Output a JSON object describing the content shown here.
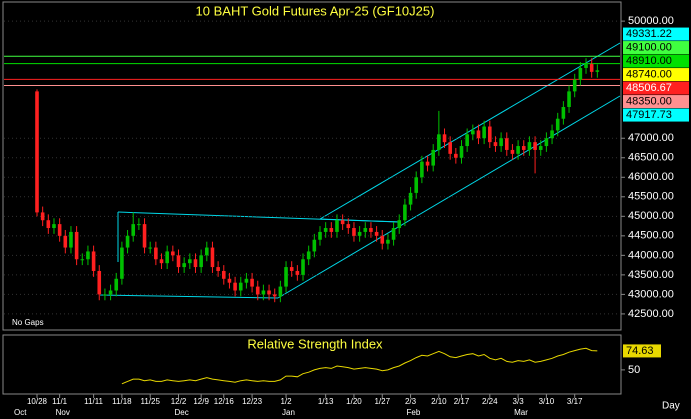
{
  "chart_data": {
    "type": "candlestick",
    "title": "10 BAHT Gold Futures Apr-25 (GF10J25)",
    "note": "No Gaps",
    "x_axis_label": "Day",
    "months": [
      "Oct",
      "Nov",
      "Dec",
      "Jan",
      "Feb",
      "Mar"
    ],
    "categories": [
      "10/28",
      null,
      null,
      null,
      "11/1",
      null,
      null,
      null,
      null,
      null,
      "11/11",
      null,
      null,
      null,
      null,
      "11/18",
      null,
      null,
      null,
      null,
      "11/25",
      null,
      null,
      null,
      null,
      "12/2",
      null,
      null,
      null,
      "12/9",
      null,
      null,
      null,
      "12/16",
      null,
      null,
      null,
      null,
      "12/23",
      null,
      null,
      null,
      null,
      null,
      "1/2",
      null,
      null,
      null,
      null,
      null,
      null,
      "1/13",
      null,
      null,
      null,
      null,
      "1/20",
      null,
      null,
      null,
      null,
      "1/27",
      null,
      null,
      null,
      null,
      "2/3",
      null,
      null,
      null,
      null,
      "2/10",
      null,
      null,
      null,
      "2/17",
      null,
      null,
      null,
      null,
      "2/24",
      null,
      null,
      null,
      null,
      "3/3",
      null,
      null,
      null,
      null,
      "3/10",
      null,
      null,
      null,
      null,
      "3/17",
      null,
      null,
      null,
      null
    ],
    "open": [
      48200,
      45100,
      44900,
      44700,
      44800,
      44500,
      44200,
      44600,
      43900,
      43900,
      44100,
      43600,
      43000,
      43000,
      43100,
      43400,
      44200,
      44500,
      44800,
      44800,
      44200,
      44200,
      43900,
      43800,
      44100,
      44000,
      43700,
      43800,
      43900,
      43700,
      44000,
      44200,
      43700,
      43600,
      43400,
      43300,
      43100,
      43300,
      43400,
      43200,
      43000,
      43100,
      43000,
      42950,
      43200,
      43700,
      43600,
      43500,
      43900,
      44100,
      44400,
      44600,
      44700,
      44600,
      44900,
      44800,
      44700,
      44500,
      44600,
      44700,
      44600,
      44500,
      44300,
      44400,
      44700,
      44900,
      45300,
      45600,
      46000,
      46400,
      46300,
      46700,
      47100,
      46900,
      46600,
      46500,
      46800,
      47100,
      47200,
      47000,
      47300,
      46900,
      46800,
      47000,
      46700,
      46600,
      46800,
      46700,
      46900,
      46700,
      46800,
      47000,
      47200,
      47500,
      47800,
      48200,
      48500,
      48800,
      48900,
      48700
    ],
    "high": [
      48250,
      45250,
      45050,
      44950,
      44950,
      44650,
      44750,
      44750,
      44050,
      44250,
      44250,
      43750,
      43150,
      43250,
      43550,
      44350,
      44650,
      45100,
      44950,
      44950,
      44350,
      44350,
      44050,
      44250,
      44250,
      44150,
      43950,
      44050,
      44050,
      44150,
      44350,
      44350,
      43850,
      43750,
      43550,
      43450,
      43450,
      43550,
      43550,
      43350,
      43250,
      43250,
      43150,
      43350,
      43850,
      43850,
      43750,
      44050,
      44250,
      44550,
      44750,
      44850,
      44850,
      45050,
      45050,
      44950,
      44850,
      44750,
      44850,
      44850,
      44750,
      44650,
      44550,
      44850,
      45050,
      45450,
      45750,
      46150,
      46550,
      46550,
      46850,
      47700,
      47250,
      47050,
      46750,
      46950,
      47250,
      47350,
      47350,
      47450,
      47450,
      47050,
      47150,
      47150,
      46850,
      46950,
      46950,
      47050,
      47050,
      46950,
      47150,
      47350,
      47650,
      47950,
      48350,
      48650,
      48950,
      49050,
      49050,
      48890
    ],
    "low": [
      45000,
      44750,
      44550,
      44550,
      44350,
      44050,
      44050,
      43750,
      43750,
      43750,
      43450,
      42850,
      42850,
      42850,
      42950,
      43250,
      44050,
      44350,
      44650,
      44050,
      44050,
      43750,
      43650,
      43650,
      43850,
      43550,
      43550,
      43650,
      43550,
      43550,
      43850,
      43550,
      43450,
      43250,
      43150,
      42950,
      42950,
      43150,
      43050,
      42850,
      42850,
      42850,
      42800,
      42800,
      43050,
      43450,
      43350,
      43350,
      43750,
      43950,
      44250,
      44450,
      44450,
      44450,
      44650,
      44550,
      44350,
      44350,
      44450,
      44450,
      44350,
      44150,
      44150,
      44250,
      44550,
      44750,
      45150,
      45450,
      45850,
      46150,
      46150,
      46550,
      46750,
      46450,
      46350,
      46350,
      46650,
      46950,
      46850,
      46850,
      46750,
      46650,
      46650,
      46550,
      46450,
      46450,
      46550,
      46550,
      46100,
      46550,
      46650,
      46850,
      47050,
      47350,
      47650,
      48050,
      48350,
      48650,
      48550,
      48550
    ],
    "close": [
      45100,
      44900,
      44700,
      44800,
      44500,
      44200,
      44600,
      43900,
      43900,
      44100,
      43600,
      43000,
      43000,
      43100,
      43400,
      44200,
      44500,
      44800,
      44800,
      44200,
      44200,
      43900,
      43800,
      44100,
      44000,
      43700,
      43800,
      43900,
      43700,
      44000,
      44200,
      43700,
      43600,
      43400,
      43300,
      43100,
      43300,
      43400,
      43200,
      43000,
      43100,
      43000,
      42950,
      43200,
      43700,
      43600,
      43500,
      43900,
      44100,
      44400,
      44600,
      44700,
      44600,
      44900,
      44800,
      44700,
      44500,
      44600,
      44700,
      44600,
      44500,
      44300,
      44400,
      44700,
      44900,
      45300,
      45600,
      46000,
      46400,
      46300,
      46700,
      47100,
      46900,
      46600,
      46500,
      46800,
      47100,
      47200,
      47000,
      47300,
      46900,
      46800,
      47000,
      46700,
      46600,
      46800,
      46700,
      46900,
      46700,
      46800,
      47000,
      47200,
      47500,
      47800,
      48200,
      48500,
      48800,
      48900,
      48700,
      48740
    ],
    "up_color": "#00c000",
    "down_color": "#ff2020",
    "ylim": [
      42088,
      50464
    ],
    "yticks": [
      {
        "value": 42500,
        "label": "42500.00"
      },
      {
        "value": 43000,
        "label": "43000.00"
      },
      {
        "value": 43500,
        "label": "43500.00"
      },
      {
        "value": 44000,
        "label": "44000.00"
      },
      {
        "value": 44500,
        "label": "44500.00"
      },
      {
        "value": 45000,
        "label": "45000.00"
      },
      {
        "value": 45500,
        "label": "45500.00"
      },
      {
        "value": 46000,
        "label": "46000.00"
      },
      {
        "value": 46500,
        "label": "46500.00"
      },
      {
        "value": 47000,
        "label": "47000.00"
      },
      {
        "value": 50000,
        "label": "50000.00"
      }
    ],
    "grid": true,
    "levels": [
      {
        "value": 49100,
        "label": "49100.00",
        "color": "#40ff40"
      },
      {
        "value": 48910,
        "label": "48910.00",
        "color": "#00e000"
      },
      {
        "value": 48506.67,
        "label": "48506.67",
        "color": "#ff2020"
      },
      {
        "value": 48350,
        "label": "48350.00",
        "color": "#ff9090"
      }
    ],
    "channel_labels": [
      {
        "value": 49331.22,
        "label": "49331.22",
        "color": "#00ffff"
      },
      {
        "value": 47917.73,
        "label": "47917.73",
        "color": "#00ffff"
      }
    ],
    "last_price": {
      "value": 48740,
      "label": "48740.00",
      "color": "#ffff00"
    },
    "rsi": {
      "title": "Relative Strength Index",
      "color": "#e8d800",
      "ylim": [
        20,
        94
      ],
      "yticks": [
        50
      ],
      "values": [
        null,
        null,
        null,
        null,
        null,
        null,
        null,
        null,
        null,
        null,
        null,
        null,
        null,
        null,
        null,
        32,
        35,
        38,
        38,
        36,
        37,
        35,
        35,
        37,
        36,
        35,
        36,
        37,
        36,
        38,
        40,
        38,
        37,
        36,
        35,
        34,
        36,
        37,
        36,
        35,
        36,
        35,
        35,
        37,
        42,
        42,
        41,
        45,
        47,
        50,
        52,
        53,
        52,
        55,
        54,
        53,
        51,
        52,
        53,
        52,
        51,
        49,
        50,
        53,
        55,
        59,
        62,
        66,
        69,
        68,
        71,
        74,
        71,
        67,
        66,
        68,
        70,
        71,
        68,
        70,
        65,
        63,
        65,
        61,
        60,
        62,
        61,
        63,
        60,
        61,
        63,
        65,
        68,
        70,
        73,
        75,
        77,
        78,
        75,
        74.63
      ]
    }
  }
}
